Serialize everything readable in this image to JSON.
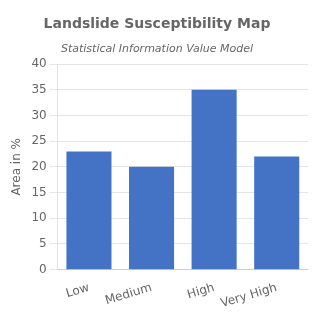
{
  "chart_data": {
    "type": "bar",
    "title": "Landslide Susceptibility Map",
    "subtitle": "Statistical Information Value Model",
    "categories": [
      "Low",
      "Medium",
      "High",
      "Very High"
    ],
    "values": [
      23,
      20,
      35,
      22
    ],
    "color": "#4472c4",
    "ylabel": "Area in %",
    "ylim": [
      0,
      40
    ],
    "yticks": [
      0,
      5,
      10,
      15,
      20,
      25,
      30,
      35,
      40
    ],
    "grid": true
  }
}
